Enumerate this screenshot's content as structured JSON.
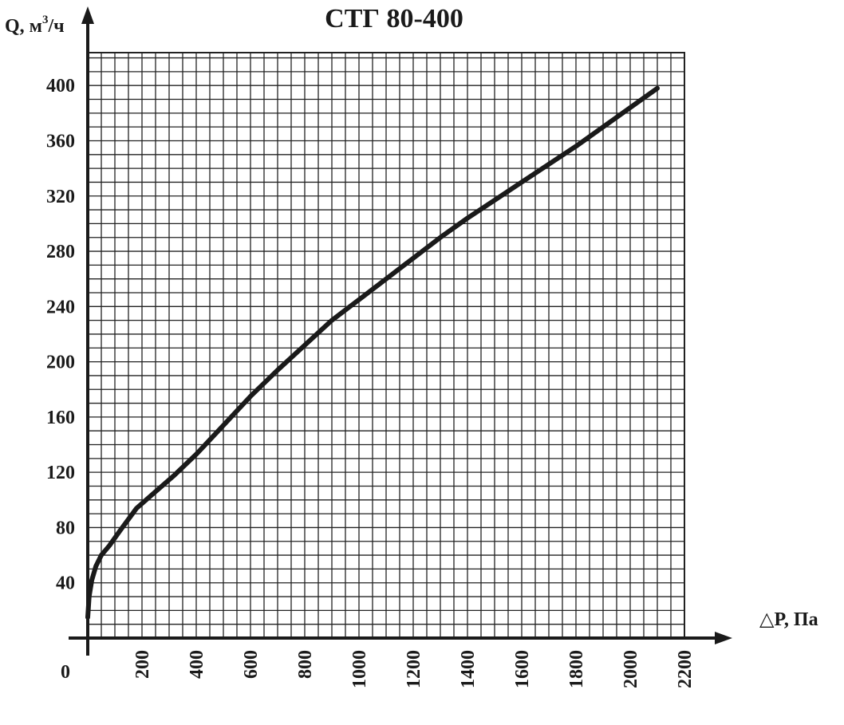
{
  "chart_data": {
    "type": "line",
    "title": "СТГ 80-400",
    "ylabel_main": "Q, м",
    "ylabel_sup": "3",
    "ylabel_tail": "/ч",
    "xlabel": "△P, Па",
    "origin_label": "0",
    "xlim": [
      0,
      2200
    ],
    "ylim": [
      0,
      400
    ],
    "x_ticks": [
      "200",
      "400",
      "600",
      "800",
      "1000",
      "1200",
      "1400",
      "1600",
      "1800",
      "2000",
      "2200"
    ],
    "y_ticks": [
      "40",
      "80",
      "120",
      "160",
      "200",
      "240",
      "280",
      "320",
      "360",
      "400"
    ],
    "grid": true,
    "series": [
      {
        "x": [
          0,
          5,
          15,
          30,
          50,
          80,
          120,
          180,
          250,
          320,
          400,
          500,
          600,
          700,
          800,
          900,
          1000,
          1100,
          1200,
          1300,
          1400,
          1500,
          1600,
          1700,
          1800,
          1900,
          2000,
          2100
        ],
        "y": [
          15,
          30,
          42,
          52,
          60,
          67,
          78,
          94,
          106,
          118,
          133,
          154,
          175,
          194,
          212,
          230,
          245,
          260,
          275,
          290,
          304,
          317,
          330,
          343,
          356,
          370,
          384,
          398
        ]
      }
    ]
  }
}
